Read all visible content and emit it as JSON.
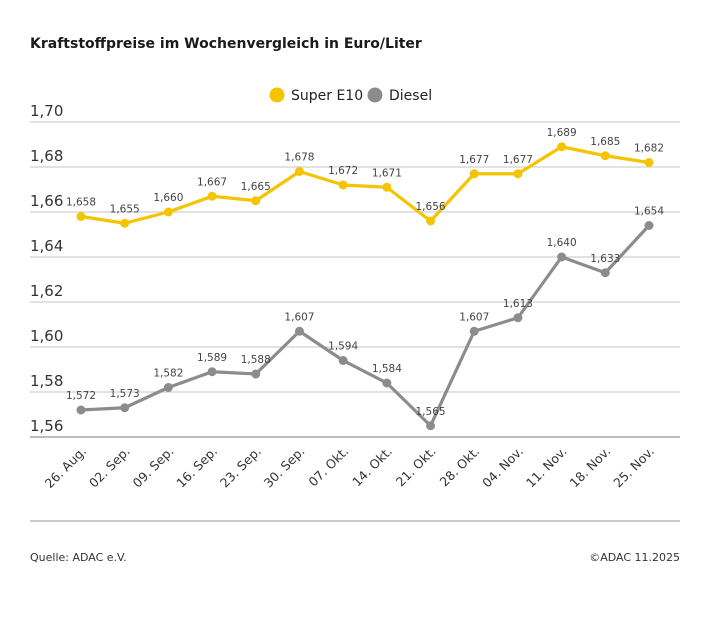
{
  "chart_data": {
    "type": "line",
    "title": "Kraftstoffpreise im Wochenvergleich in Euro/Liter",
    "categories": [
      "26. Aug.",
      "02. Sep.",
      "09. Sep.",
      "16. Sep.",
      "23. Sep.",
      "30. Sep.",
      "07. Okt.",
      "14. Okt.",
      "21. Okt.",
      "28. Okt.",
      "04. Nov.",
      "11. Nov.",
      "18. Nov.",
      "25. Nov."
    ],
    "series": [
      {
        "name": "Super E10",
        "color": "#f5c400",
        "values": [
          1.658,
          1.655,
          1.66,
          1.667,
          1.665,
          1.678,
          1.672,
          1.671,
          1.656,
          1.677,
          1.677,
          1.689,
          1.685,
          1.682
        ]
      },
      {
        "name": "Diesel",
        "color": "#8c8c8c",
        "values": [
          1.572,
          1.573,
          1.582,
          1.589,
          1.588,
          1.607,
          1.594,
          1.584,
          1.565,
          1.607,
          1.613,
          1.64,
          1.633,
          1.654
        ]
      }
    ],
    "yticks": [
      "1,56",
      "1,58",
      "1,60",
      "1,62",
      "1,64",
      "1,66",
      "1,68",
      "1,70"
    ],
    "ylim": [
      1.56,
      1.7
    ],
    "grid": true,
    "legend": "top-center",
    "decimal_separator": ","
  },
  "footer": {
    "source": "Quelle: ADAC e.V.",
    "copyright": "©ADAC 11.2025"
  }
}
